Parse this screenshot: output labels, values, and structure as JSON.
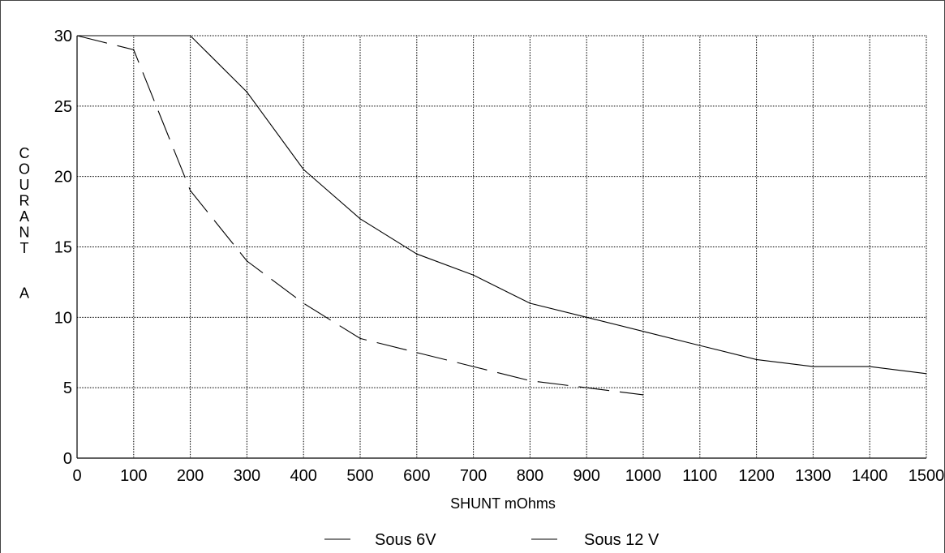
{
  "chart_data": {
    "type": "line",
    "title": "",
    "xlabel": "SHUNT mOhms",
    "ylabel": "COURANT A",
    "xlim": [
      0,
      1500
    ],
    "ylim": [
      0,
      30
    ],
    "x_ticks": [
      0,
      100,
      200,
      300,
      400,
      500,
      600,
      700,
      800,
      900,
      1000,
      1100,
      1200,
      1300,
      1400,
      1500
    ],
    "y_ticks": [
      0,
      5,
      10,
      15,
      20,
      25,
      30
    ],
    "grid": true,
    "legend_position": "bottom",
    "series": [
      {
        "name": "Sous 6V",
        "style": "dashed",
        "color": "#000000",
        "x": [
          0,
          100,
          200,
          300,
          400,
          500,
          600,
          700,
          800,
          900,
          1000
        ],
        "y": [
          30,
          29,
          19,
          14,
          11,
          8.5,
          7.5,
          6.5,
          5.5,
          5,
          4.5
        ]
      },
      {
        "name": "Sous 12 V",
        "style": "solid",
        "color": "#000000",
        "x": [
          0,
          100,
          200,
          300,
          400,
          500,
          600,
          700,
          800,
          900,
          1000,
          1100,
          1200,
          1300,
          1400,
          1500
        ],
        "y": [
          30,
          30,
          30,
          26,
          20.5,
          17,
          14.5,
          13,
          11,
          10,
          9,
          8,
          7,
          6.5,
          6.5,
          6
        ]
      }
    ]
  }
}
